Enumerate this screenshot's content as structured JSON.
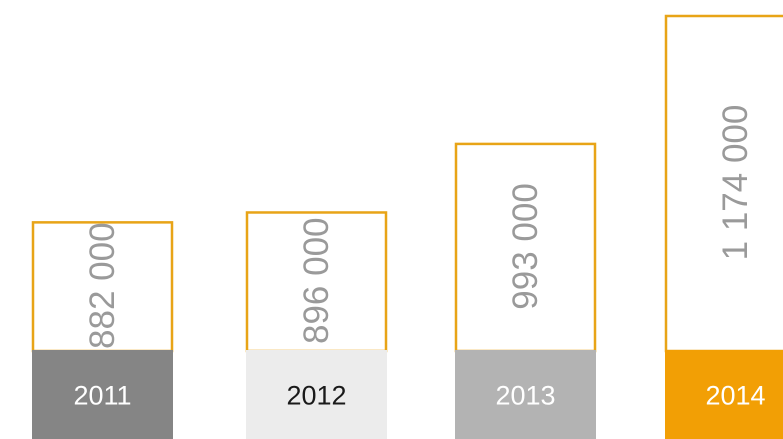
{
  "chart_data": {
    "type": "bar",
    "categories": [
      "2011",
      "2012",
      "2013",
      "2014"
    ],
    "values": [
      882000,
      896000,
      993000,
      1174000
    ],
    "value_labels": [
      "882 000",
      "896 000",
      "993 000",
      "1 174 000"
    ],
    "title": "",
    "xlabel": "",
    "ylabel": "",
    "ylim": [
      0,
      1174000
    ],
    "grid": false,
    "legend": "none"
  },
  "colors": {
    "bar_outline": "#e8a417",
    "value_text": "#9a9a9a",
    "category_fills": [
      "#858585",
      "#ececec",
      "#b3b3b3",
      "#f29f05"
    ],
    "category_text": [
      "#ffffff",
      "#1a1a1a",
      "#ffffff",
      "#ffffff"
    ]
  }
}
